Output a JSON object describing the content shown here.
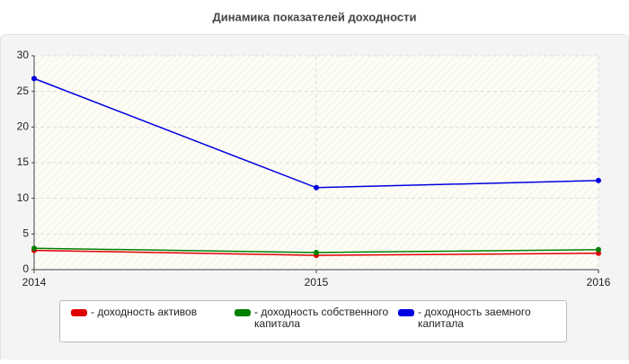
{
  "chart_data": {
    "type": "line",
    "title": "Динамика показателей доходности",
    "x": [
      2014,
      2015,
      2016
    ],
    "xlim": [
      2014,
      2016
    ],
    "xticks": [
      2014,
      2015,
      2016
    ],
    "ylim": [
      0,
      30
    ],
    "yticks": [
      0,
      5,
      10,
      15,
      20,
      25,
      30
    ],
    "grid": true,
    "series": [
      {
        "name": "- доходность активов",
        "color": "#e00000",
        "values": [
          2.7,
          2.0,
          2.3
        ]
      },
      {
        "name": "- доходность собственного капитала",
        "color": "#008000",
        "values": [
          3.0,
          2.4,
          2.8
        ]
      },
      {
        "name": "- доходность заемного капитала",
        "color": "#0000e0",
        "values": [
          26.8,
          11.5,
          12.5
        ]
      }
    ]
  }
}
